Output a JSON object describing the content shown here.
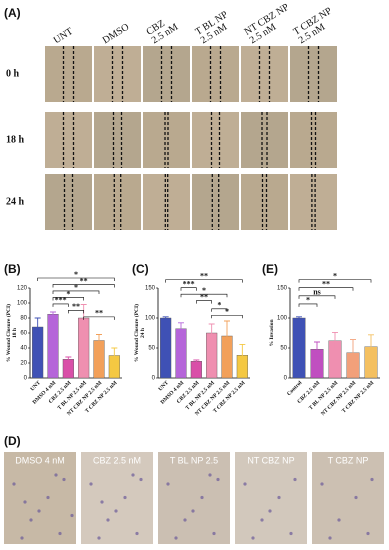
{
  "panel_labels": [
    "(A)",
    "(B)",
    "(C)",
    "(E)",
    "(D)"
  ],
  "panel_a": {
    "columns": [
      [
        "UNT"
      ],
      [
        "DMSO"
      ],
      [
        "CBZ",
        "2.5 nM"
      ],
      [
        "T BL NP",
        "2.5 nM"
      ],
      [
        "NT CBZ NP",
        "2.5 nM"
      ],
      [
        "T CBZ NP",
        "2.5 nM"
      ]
    ],
    "rows": [
      "0 h",
      "18 h",
      "24 h"
    ]
  },
  "chart_data": [
    {
      "type": "bar",
      "ylabel": [
        "% Wound Closure (PCI)",
        "18 h"
      ],
      "categories": [
        "UNT",
        "DMSO 4 nM",
        "CBZ 2.5 nM",
        "T BL NP 2.5 nM",
        "NT CBZ NP 2.5 nM",
        "T CBZ NP 2.5 nM"
      ],
      "values": [
        68,
        85,
        25,
        80,
        50,
        30
      ],
      "errors": [
        12,
        3,
        3,
        18,
        8,
        10
      ],
      "colors": [
        "#3f51b5",
        "#b565d9",
        "#d94fa8",
        "#ef8fb0",
        "#f2a05a",
        "#f4c842"
      ],
      "ylim": [
        0,
        120
      ],
      "yticks": [
        0,
        20,
        40,
        60,
        80,
        100,
        120
      ],
      "annotations": [
        "*",
        "**",
        "*",
        "*",
        "***",
        "**",
        "**"
      ]
    },
    {
      "type": "bar",
      "ylabel": [
        "% Wound Closure (PCI)",
        "24 h"
      ],
      "categories": [
        "UNT",
        "DMSO 4 nM",
        "CBZ 2.5 nM",
        "T BL NP 2.5 nM",
        "NT CBZ NP 2.5 nM",
        "T CBZ NP 2.5 nM"
      ],
      "values": [
        100,
        82,
        28,
        75,
        70,
        38
      ],
      "errors": [
        2,
        10,
        2,
        15,
        25,
        18
      ],
      "colors": [
        "#3f51b5",
        "#b565d9",
        "#d94fa8",
        "#ef8fb0",
        "#f2a05a",
        "#f4c842"
      ],
      "ylim": [
        0,
        150
      ],
      "yticks": [
        0,
        50,
        100,
        150
      ],
      "annotations": [
        "**",
        "***",
        "*",
        "**",
        "*",
        "*"
      ]
    },
    {
      "type": "bar",
      "ylabel": [
        "% Invasion"
      ],
      "categories": [
        "Control",
        "CBZ 2.5 nM",
        "T BL NP 2.5 nM",
        "NT CBZ NP 2.5 nM",
        "T CBZ NP 2.5 nM"
      ],
      "values": [
        100,
        48,
        62,
        42,
        52
      ],
      "errors": [
        2,
        12,
        14,
        22,
        20
      ],
      "colors": [
        "#3f51b5",
        "#c04fc0",
        "#ef8fb0",
        "#f2a07a",
        "#f4c060"
      ],
      "ylim": [
        0,
        150
      ],
      "yticks": [
        0,
        50,
        100,
        150
      ],
      "annotations": [
        "*",
        "**",
        "ns",
        "*"
      ]
    }
  ],
  "panel_d": {
    "labels": [
      "DMSO 4 nM",
      "CBZ 2.5 nM",
      "T BL NP 2.5",
      "NT CBZ NP",
      "T CBZ NP"
    ]
  }
}
